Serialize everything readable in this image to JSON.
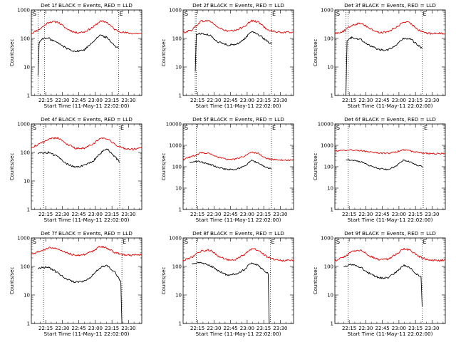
{
  "figure": {
    "title_template": "Det {n}f BLACK = Events, RED = LLD",
    "xlabel": "Start Time (11-May-11 22:02:00)",
    "ylabel": "Counts/sec",
    "colors": {
      "events": "#000000",
      "lld": "#e00000",
      "axes": "#000000",
      "markers": "#000000"
    }
  },
  "chart_data": [
    {
      "type": "line",
      "detector": "1f",
      "title": "Det 1f BLACK = Events, RED = LLD",
      "xlabel": "Start Time (11-May-11 22:02:00)",
      "ylabel": "Counts/sec",
      "y_scale": "log",
      "ylim": [
        1,
        1000
      ],
      "xlim": [
        "22:02",
        "23:42"
      ],
      "x_ticks": [
        "22:15",
        "22:30",
        "22:45",
        "23:00",
        "23:15",
        "23:30"
      ],
      "y_ticks": [
        "1",
        "10",
        "100",
        "1000"
      ],
      "vlines": [
        "22:08",
        "22:14",
        "23:21"
      ],
      "vline_labels": [
        "S",
        "E"
      ],
      "series": [
        {
          "name": "LLD",
          "color": "#e00000",
          "x": [
            "22:02",
            "22:10",
            "22:18",
            "22:26",
            "22:34",
            "22:42",
            "22:50",
            "22:58",
            "23:04",
            "23:10",
            "23:18",
            "23:26",
            "23:34",
            "23:42"
          ],
          "values": [
            150,
            220,
            380,
            380,
            220,
            160,
            170,
            250,
            400,
            380,
            200,
            160,
            150,
            150
          ]
        },
        {
          "name": "Events",
          "color": "#000000",
          "x": [
            "22:08",
            "22:09",
            "22:12",
            "22:18",
            "22:26",
            "22:34",
            "22:42",
            "22:50",
            "22:58",
            "23:04",
            "23:10",
            "23:18",
            "23:21"
          ],
          "values": [
            5,
            70,
            100,
            100,
            70,
            45,
            35,
            40,
            80,
            130,
            110,
            55,
            45
          ]
        }
      ]
    },
    {
      "type": "line",
      "detector": "2f",
      "title": "Det 2f BLACK = Events, RED = LLD",
      "xlabel": "Start Time (11-May-11 22:02:00)",
      "ylabel": "Counts/sec",
      "y_scale": "log",
      "ylim": [
        1,
        1000
      ],
      "xlim": [
        "22:02",
        "23:42"
      ],
      "x_ticks": [
        "22:15",
        "22:30",
        "22:45",
        "23:00",
        "23:15",
        "23:30"
      ],
      "y_ticks": [
        "1",
        "10",
        "100",
        "1000"
      ],
      "vlines": [
        "22:13",
        "22:14",
        "23:22"
      ],
      "vline_labels": [
        "S",
        "E"
      ],
      "series": [
        {
          "name": "LLD",
          "color": "#e00000",
          "x": [
            "22:02",
            "22:10",
            "22:18",
            "22:26",
            "22:34",
            "22:42",
            "22:50",
            "22:58",
            "23:04",
            "23:10",
            "23:18",
            "23:26",
            "23:34",
            "23:42"
          ],
          "values": [
            160,
            200,
            400,
            420,
            240,
            180,
            190,
            280,
            420,
            380,
            210,
            170,
            160,
            170
          ]
        },
        {
          "name": "Events",
          "color": "#000000",
          "x": [
            "22:13",
            "22:14",
            "22:18",
            "22:26",
            "22:34",
            "22:42",
            "22:50",
            "22:58",
            "23:04",
            "23:10",
            "23:18",
            "23:22"
          ],
          "values": [
            7,
            140,
            150,
            130,
            75,
            60,
            60,
            100,
            180,
            140,
            80,
            65
          ]
        }
      ]
    },
    {
      "type": "line",
      "detector": "3f",
      "title": "Det 3f BLACK = Events, RED = LLD",
      "xlabel": "Start Time (11-May-11 22:02:00)",
      "ylabel": "Counts/sec",
      "y_scale": "log",
      "ylim": [
        1,
        1000
      ],
      "xlim": [
        "22:02",
        "23:42"
      ],
      "x_ticks": [
        "22:15",
        "22:30",
        "22:45",
        "23:00",
        "23:15",
        "23:30"
      ],
      "y_ticks": [
        "1",
        "10",
        "100",
        "1000"
      ],
      "vlines": [
        "22:12",
        "22:14",
        "23:21"
      ],
      "vline_labels": [
        "S",
        "E"
      ],
      "series": [
        {
          "name": "LLD",
          "color": "#e00000",
          "x": [
            "22:02",
            "22:10",
            "22:18",
            "22:26",
            "22:34",
            "22:42",
            "22:50",
            "22:58",
            "23:04",
            "23:10",
            "23:18",
            "23:26",
            "23:34",
            "23:42"
          ],
          "values": [
            150,
            180,
            300,
            350,
            220,
            160,
            170,
            250,
            380,
            350,
            200,
            150,
            150,
            150
          ]
        },
        {
          "name": "Events",
          "color": "#000000",
          "x": [
            "22:12",
            "22:13",
            "22:18",
            "22:26",
            "22:34",
            "22:42",
            "22:50",
            "22:58",
            "23:04",
            "23:10",
            "23:18",
            "23:21"
          ],
          "values": [
            1,
            90,
            110,
            90,
            55,
            40,
            40,
            60,
            100,
            100,
            55,
            45
          ]
        }
      ]
    },
    {
      "type": "line",
      "detector": "4f",
      "title": "Det 4f BLACK = Events, RED = LLD",
      "xlabel": "Start Time (11-May-11 22:02:00)",
      "ylabel": "Counts/sec",
      "y_scale": "log",
      "ylim": [
        1,
        1000
      ],
      "xlim": [
        "22:02",
        "23:42"
      ],
      "x_ticks": [
        "22:15",
        "22:30",
        "22:45",
        "23:00",
        "23:15",
        "23:30"
      ],
      "y_ticks": [
        "1",
        "10",
        "100",
        "1000"
      ],
      "vlines": [
        "22:13",
        "23:22"
      ],
      "vline_labels": [
        "S",
        "E"
      ],
      "series": [
        {
          "name": "LLD",
          "color": "#e00000",
          "x": [
            "22:02",
            "22:10",
            "22:18",
            "22:26",
            "22:34",
            "22:42",
            "22:50",
            "22:58",
            "23:04",
            "23:10",
            "23:18",
            "23:26",
            "23:34",
            "23:42"
          ],
          "values": [
            150,
            200,
            300,
            330,
            200,
            140,
            140,
            200,
            300,
            310,
            190,
            140,
            130,
            140
          ]
        },
        {
          "name": "Events",
          "color": "#000000",
          "x": [
            "22:08",
            "22:12",
            "22:18",
            "22:26",
            "22:34",
            "22:42",
            "22:50",
            "22:58",
            "23:04",
            "23:10",
            "23:18",
            "23:22"
          ],
          "values": [
            90,
            100,
            100,
            70,
            40,
            30,
            35,
            50,
            90,
            140,
            70,
            45
          ]
        }
      ]
    },
    {
      "type": "line",
      "detector": "5f",
      "title": "Det 5f BLACK = Events, RED = LLD",
      "xlabel": "Start Time (11-May-11 22:02:00)",
      "ylabel": "Counts/sec",
      "y_scale": "log",
      "ylim": [
        1,
        10000
      ],
      "xlim": [
        "22:02",
        "23:42"
      ],
      "x_ticks": [
        "22:15",
        "22:30",
        "22:45",
        "23:00",
        "23:15",
        "23:30"
      ],
      "y_ticks": [
        "1",
        "10",
        "100",
        "1000",
        "10000"
      ],
      "vlines": [
        "22:14",
        "23:22"
      ],
      "vline_labels": [
        "S",
        "E"
      ],
      "series": [
        {
          "name": "LLD",
          "color": "#e00000",
          "x": [
            "22:02",
            "22:10",
            "22:18",
            "22:26",
            "22:34",
            "22:42",
            "22:50",
            "22:58",
            "23:04",
            "23:10",
            "23:18",
            "23:26",
            "23:34",
            "23:42"
          ],
          "values": [
            230,
            300,
            450,
            420,
            280,
            220,
            230,
            320,
            480,
            420,
            240,
            210,
            200,
            210
          ]
        },
        {
          "name": "Events",
          "color": "#000000",
          "x": [
            "22:08",
            "22:12",
            "22:18",
            "22:26",
            "22:34",
            "22:42",
            "22:50",
            "22:58",
            "23:04",
            "23:10",
            "23:18",
            "23:22"
          ],
          "values": [
            150,
            180,
            170,
            130,
            90,
            75,
            75,
            110,
            200,
            150,
            90,
            80
          ]
        }
      ]
    },
    {
      "type": "line",
      "detector": "6f",
      "title": "Det 6f BLACK = Events, RED = LLD",
      "xlabel": "Start Time (11-May-11 22:02:00)",
      "ylabel": "Counts/sec",
      "y_scale": "log",
      "ylim": [
        1,
        10000
      ],
      "xlim": [
        "22:02",
        "23:42"
      ],
      "x_ticks": [
        "22:15",
        "22:30",
        "22:45",
        "23:00",
        "23:15",
        "23:30"
      ],
      "y_ticks": [
        "1",
        "10",
        "100",
        "1000",
        "10000"
      ],
      "vlines": [
        "22:14",
        "23:22"
      ],
      "vline_labels": [
        "S",
        "E"
      ],
      "series": [
        {
          "name": "LLD",
          "color": "#e00000",
          "x": [
            "22:02",
            "22:10",
            "22:18",
            "22:26",
            "22:34",
            "22:42",
            "22:50",
            "22:58",
            "23:04",
            "23:10",
            "23:18",
            "23:26",
            "23:34",
            "23:42"
          ],
          "values": [
            550,
            600,
            600,
            570,
            480,
            430,
            420,
            500,
            620,
            560,
            450,
            420,
            410,
            410
          ]
        },
        {
          "name": "Events",
          "color": "#000000",
          "x": [
            "22:12",
            "22:18",
            "22:26",
            "22:34",
            "22:42",
            "22:50",
            "22:58",
            "23:04",
            "23:10",
            "23:18",
            "23:22"
          ],
          "values": [
            220,
            200,
            170,
            110,
            80,
            75,
            110,
            200,
            170,
            110,
            100
          ]
        }
      ]
    },
    {
      "type": "line",
      "detector": "7f",
      "title": "Det 7f BLACK = Events, RED = LLD",
      "xlabel": "Start Time (11-May-11 22:02:00)",
      "ylabel": "Counts/sec",
      "y_scale": "log",
      "ylim": [
        1,
        1000
      ],
      "xlim": [
        "22:02",
        "23:42"
      ],
      "x_ticks": [
        "22:15",
        "22:30",
        "22:45",
        "23:00",
        "23:15",
        "23:30"
      ],
      "y_ticks": [
        "1",
        "10",
        "100",
        "1000"
      ],
      "vlines": [
        "22:13",
        "23:24"
      ],
      "vline_labels": [
        "S",
        "E"
      ],
      "series": [
        {
          "name": "LLD",
          "color": "#e00000",
          "x": [
            "22:02",
            "22:10",
            "22:18",
            "22:26",
            "22:34",
            "22:42",
            "22:50",
            "22:58",
            "23:04",
            "23:10",
            "23:18",
            "23:26",
            "23:34",
            "23:42"
          ],
          "values": [
            270,
            350,
            450,
            420,
            300,
            250,
            260,
            350,
            500,
            450,
            300,
            260,
            250,
            260
          ]
        },
        {
          "name": "Events",
          "color": "#000000",
          "x": [
            "22:08",
            "22:12",
            "22:18",
            "22:26",
            "22:34",
            "22:42",
            "22:50",
            "22:58",
            "23:04",
            "23:10",
            "23:18",
            "23:23",
            "23:24"
          ],
          "values": [
            80,
            95,
            90,
            60,
            35,
            28,
            30,
            50,
            90,
            110,
            60,
            30,
            1
          ]
        }
      ]
    },
    {
      "type": "line",
      "detector": "8f",
      "title": "Det 8f BLACK = Events, RED = LLD",
      "xlabel": "Start Time (11-May-11 22:02:00)",
      "ylabel": "Counts/sec",
      "y_scale": "log",
      "ylim": [
        1,
        1000
      ],
      "xlim": [
        "22:02",
        "23:42"
      ],
      "x_ticks": [
        "22:15",
        "22:30",
        "22:45",
        "23:00",
        "23:15",
        "23:30"
      ],
      "y_ticks": [
        "1",
        "10",
        "100",
        "1000"
      ],
      "vlines": [
        "22:14",
        "23:21"
      ],
      "vline_labels": [
        "S",
        "E"
      ],
      "series": [
        {
          "name": "LLD",
          "color": "#e00000",
          "x": [
            "22:02",
            "22:10",
            "22:18",
            "22:26",
            "22:34",
            "22:42",
            "22:50",
            "22:58",
            "23:04",
            "23:10",
            "23:18",
            "23:26",
            "23:34",
            "23:42"
          ],
          "values": [
            160,
            210,
            350,
            380,
            230,
            170,
            180,
            270,
            420,
            380,
            220,
            170,
            160,
            170
          ]
        },
        {
          "name": "Events",
          "color": "#000000",
          "x": [
            "22:10",
            "22:18",
            "22:26",
            "22:34",
            "22:42",
            "22:50",
            "22:58",
            "23:04",
            "23:10",
            "23:16",
            "23:19",
            "23:20"
          ],
          "values": [
            120,
            140,
            110,
            70,
            50,
            55,
            80,
            140,
            110,
            70,
            55,
            1
          ]
        }
      ]
    },
    {
      "type": "line",
      "detector": "9f",
      "title": "Det 9f BLACK = Events, RED = LLD",
      "xlabel": "Start Time (11-May-11 22:02:00)",
      "ylabel": "Counts/sec",
      "y_scale": "log",
      "ylim": [
        1,
        1000
      ],
      "xlim": [
        "22:02",
        "23:42"
      ],
      "x_ticks": [
        "22:15",
        "22:30",
        "22:45",
        "23:00",
        "23:15",
        "23:30"
      ],
      "y_ticks": [
        "1",
        "10",
        "100",
        "1000"
      ],
      "vlines": [
        "22:14",
        "23:21"
      ],
      "vline_labels": [
        "S",
        "E"
      ],
      "series": [
        {
          "name": "LLD",
          "color": "#e00000",
          "x": [
            "22:02",
            "22:10",
            "22:18",
            "22:26",
            "22:34",
            "22:42",
            "22:50",
            "22:58",
            "23:04",
            "23:10",
            "23:18",
            "23:26",
            "23:34",
            "23:42"
          ],
          "values": [
            160,
            210,
            350,
            370,
            230,
            170,
            180,
            270,
            420,
            380,
            230,
            170,
            160,
            170
          ]
        },
        {
          "name": "Events",
          "color": "#000000",
          "x": [
            "22:10",
            "22:18",
            "22:26",
            "22:34",
            "22:42",
            "22:50",
            "22:58",
            "23:04",
            "23:10",
            "23:16",
            "23:20",
            "23:21"
          ],
          "values": [
            100,
            120,
            90,
            55,
            40,
            40,
            65,
            110,
            90,
            55,
            45,
            4
          ]
        }
      ]
    }
  ]
}
